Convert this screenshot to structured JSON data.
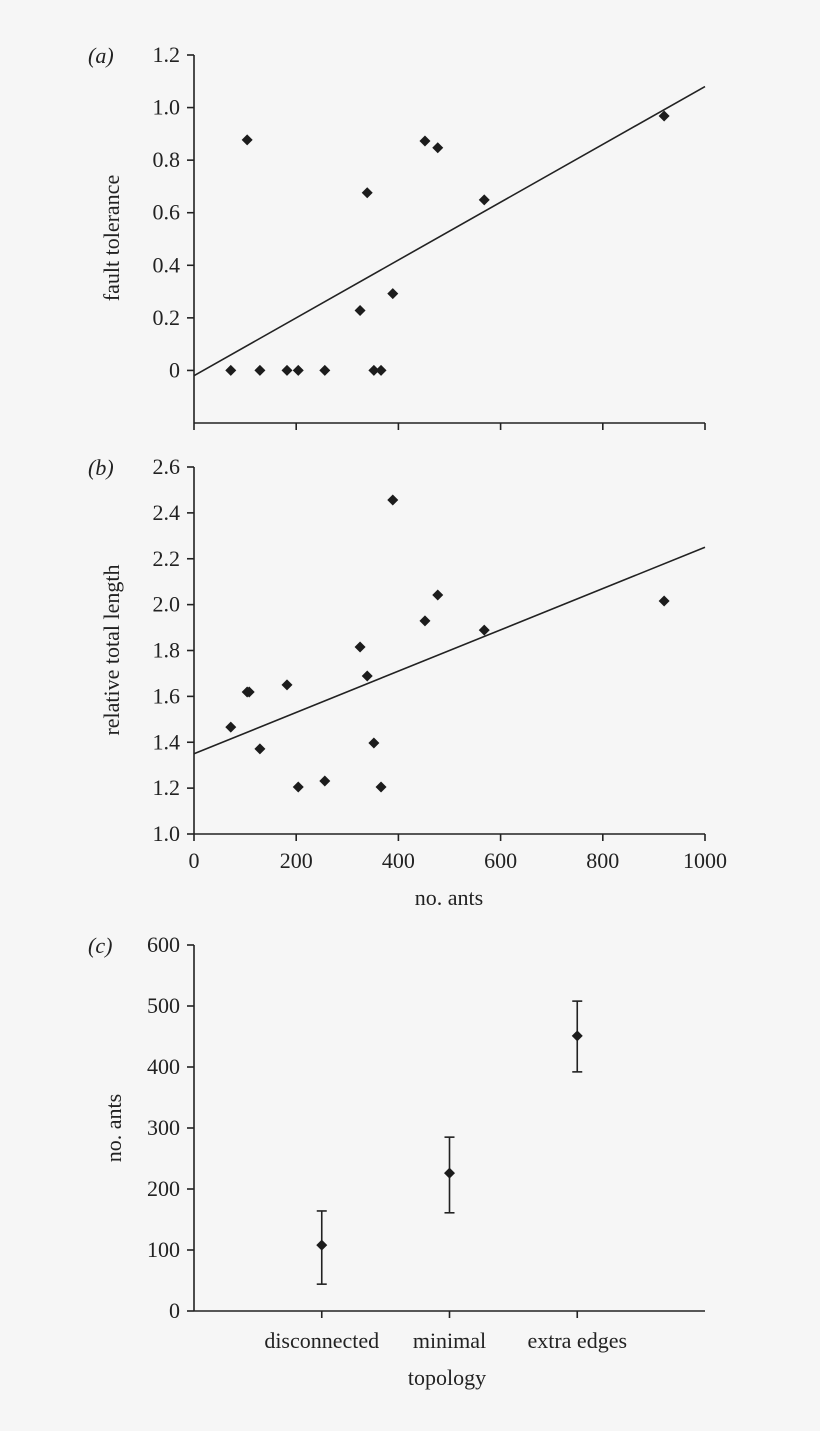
{
  "chart_data": [
    {
      "type": "scatter",
      "panel_label": "(a)",
      "ylabel": "fault tolerance",
      "xlabel": "",
      "xlim": [
        0,
        1000
      ],
      "ylim": [
        -0.2,
        1.2
      ],
      "yticks": [
        "0",
        "0.2",
        "0.4",
        "0.6",
        "0.8",
        "1.0",
        "1.2"
      ],
      "ytick_values": [
        0,
        0.2,
        0.4,
        0.6,
        0.8,
        1.0,
        1.2
      ],
      "xtick_values": [
        0,
        200,
        400,
        600,
        800,
        1000
      ],
      "show_xtick_labels": false,
      "grid": false,
      "x": [
        72,
        104,
        129,
        182,
        204,
        256,
        325,
        339,
        352,
        366,
        389,
        452,
        477,
        568,
        920
      ],
      "y": [
        0,
        0.877,
        0,
        0,
        0,
        0,
        0.228,
        0.676,
        0,
        0,
        0.292,
        0.873,
        0.847,
        0.649,
        0.968
      ],
      "trendline": {
        "x": [
          0,
          1000
        ],
        "y": [
          -0.02,
          1.08
        ]
      }
    },
    {
      "type": "scatter",
      "panel_label": "(b)",
      "ylabel": "relative total length",
      "xlabel": "no. ants",
      "xlim": [
        0,
        1000
      ],
      "ylim": [
        1.0,
        2.6
      ],
      "yticks": [
        "1.0",
        "1.2",
        "1.4",
        "1.6",
        "1.8",
        "2.0",
        "2.2",
        "2.4",
        "2.6"
      ],
      "ytick_values": [
        1.0,
        1.2,
        1.4,
        1.6,
        1.8,
        2.0,
        2.2,
        2.4,
        2.6
      ],
      "xticks": [
        "0",
        "200",
        "400",
        "600",
        "800",
        "1000"
      ],
      "xtick_values": [
        0,
        200,
        400,
        600,
        800,
        1000
      ],
      "grid": false,
      "x": [
        72,
        104,
        108,
        129,
        182,
        204,
        256,
        325,
        339,
        352,
        366,
        389,
        452,
        477,
        568,
        920
      ],
      "y": [
        1.466,
        1.619,
        1.619,
        1.371,
        1.65,
        1.205,
        1.231,
        1.815,
        1.689,
        1.397,
        1.205,
        2.456,
        1.929,
        2.042,
        1.889,
        2.016
      ],
      "trendline": {
        "x": [
          0,
          1000
        ],
        "y": [
          1.35,
          2.25
        ]
      }
    },
    {
      "type": "scatter",
      "panel_label": "(c)",
      "ylabel": "no. ants",
      "xlabel": "topology",
      "ylim": [
        0,
        600
      ],
      "yticks": [
        "0",
        "100",
        "200",
        "300",
        "400",
        "500",
        "600"
      ],
      "ytick_values": [
        0,
        100,
        200,
        300,
        400,
        500,
        600
      ],
      "categories": [
        "disconnected",
        "minimal",
        "extra edges"
      ],
      "grid": false,
      "values": [
        108,
        226,
        451
      ],
      "error_low": [
        44,
        161,
        392
      ],
      "error_high": [
        164,
        285,
        508
      ]
    }
  ]
}
